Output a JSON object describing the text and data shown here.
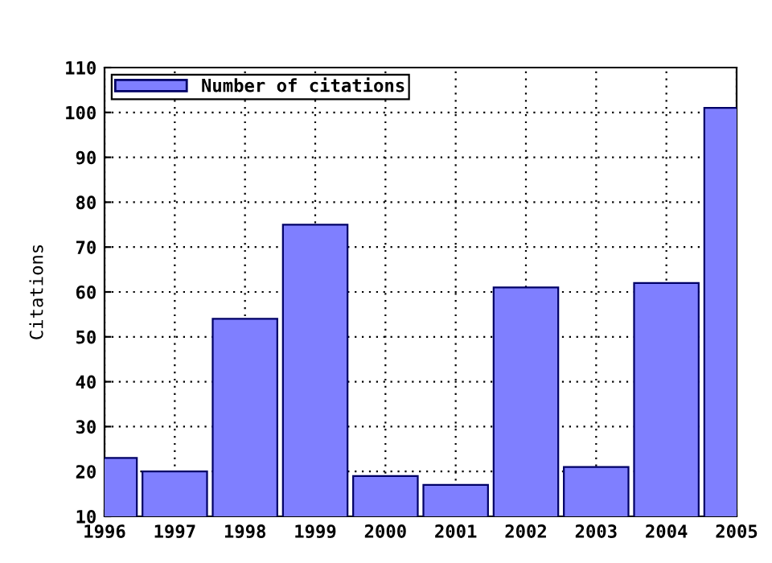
{
  "chart_data": {
    "type": "bar",
    "ylabel": "Citations",
    "x": [
      1996,
      1997,
      1998,
      1999,
      2000,
      2001,
      2002,
      2003,
      2004,
      2005
    ],
    "series": [
      {
        "name": "Number of citations",
        "color": "#7f7fff",
        "values": [
          23,
          20,
          54,
          75,
          19,
          17,
          61,
          21,
          62,
          101
        ]
      }
    ],
    "xlim": [
      1996,
      2005
    ],
    "xticks": [
      1996,
      1997,
      1998,
      1999,
      2000,
      2001,
      2002,
      2003,
      2004,
      2005
    ],
    "ylim": [
      10,
      110
    ],
    "yticks": [
      10,
      20,
      30,
      40,
      50,
      60,
      70,
      80,
      90,
      100,
      110
    ],
    "grid": true,
    "legend": "top left"
  }
}
